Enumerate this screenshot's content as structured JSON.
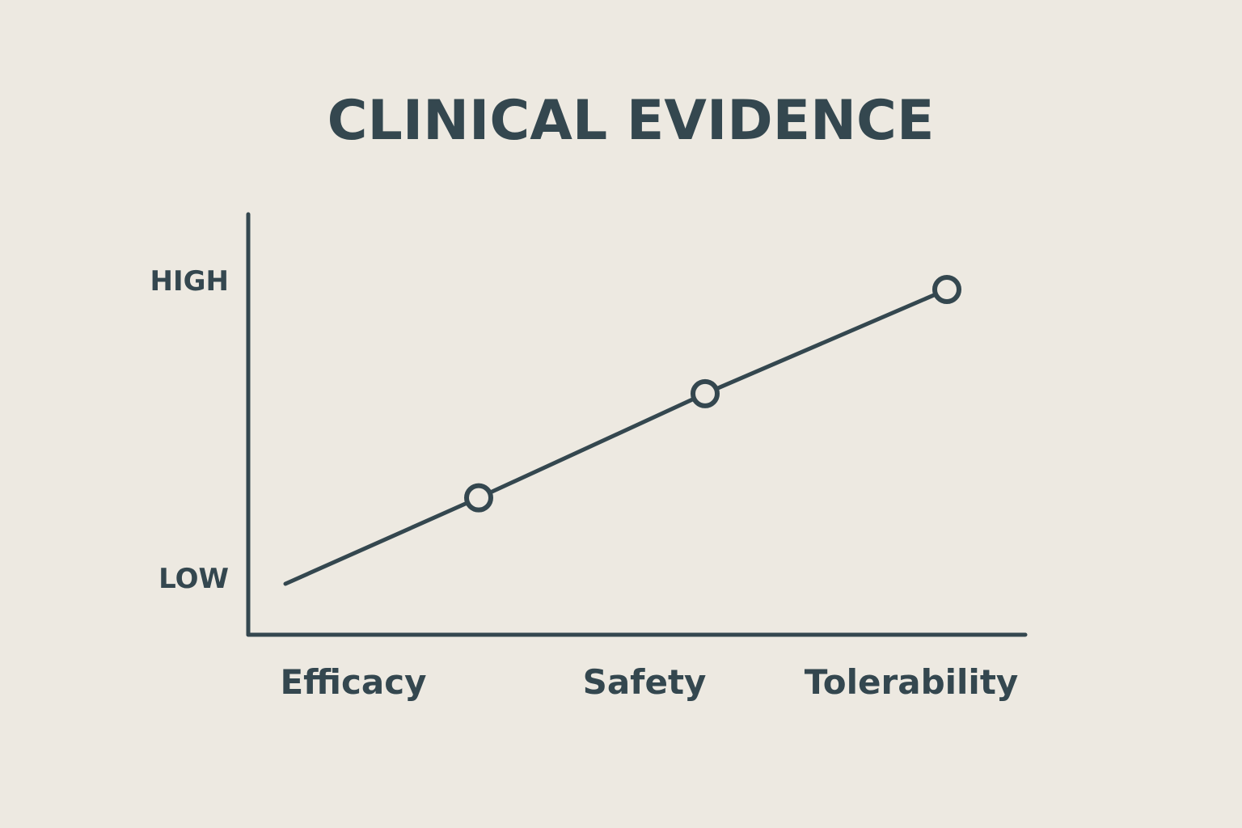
{
  "chart_data": {
    "type": "line",
    "title": "CLINICAL EVIDENCE",
    "categories": [
      "Efficacy",
      "Safety",
      "Tolerability"
    ],
    "y_tick_labels": [
      "LOW",
      "HIGH"
    ],
    "ylim": [
      0,
      1
    ],
    "values": [
      0.27,
      0.62,
      0.97
    ],
    "markers": "hollow-circle",
    "grid": false,
    "legend": "none",
    "colors": {
      "line": "#34474F",
      "background": "#EDE9E1"
    }
  }
}
